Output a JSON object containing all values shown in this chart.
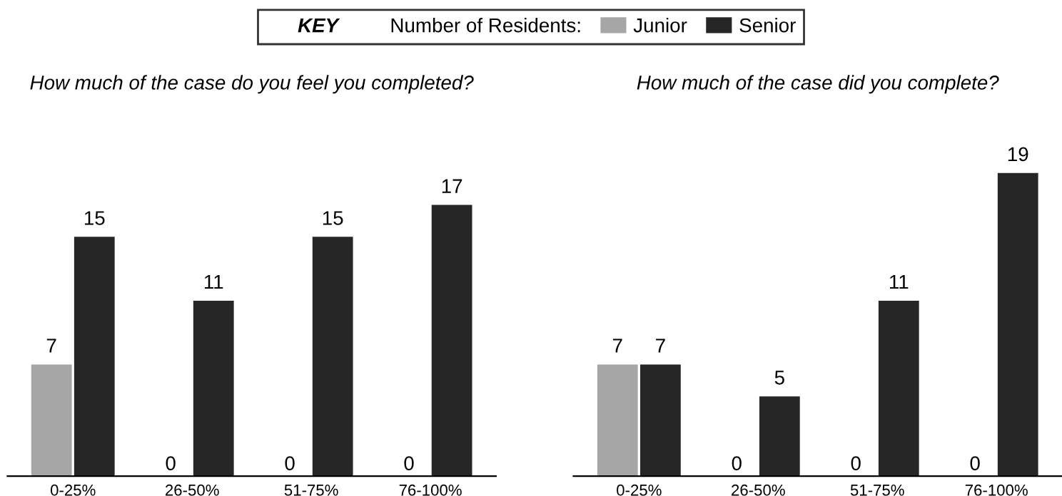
{
  "chart_data": [
    {
      "type": "bar",
      "title": "How much of the case do you feel you completed?",
      "categories": [
        "0-25%",
        "26-50%",
        "51-75%",
        "76-100%"
      ],
      "series": [
        {
          "name": "Junior",
          "color": "#a6a6a6",
          "values": [
            7,
            0,
            0,
            0
          ]
        },
        {
          "name": "Senior",
          "color": "#262626",
          "values": [
            15,
            11,
            15,
            17
          ]
        }
      ],
      "data_labels": true,
      "legend": "top",
      "legend_title": "Number of Residents:",
      "annotations": [
        "KEY"
      ]
    },
    {
      "type": "bar",
      "title": "How much of the case did you complete?",
      "categories": [
        "0-25%",
        "26-50%",
        "51-75%",
        "76-100%"
      ],
      "series": [
        {
          "color": "#a6a6a6",
          "values": [
            7,
            0,
            0,
            0
          ]
        },
        {
          "color": "#262626",
          "values": [
            7,
            5,
            11,
            19
          ]
        }
      ],
      "data_labels": true
    }
  ]
}
